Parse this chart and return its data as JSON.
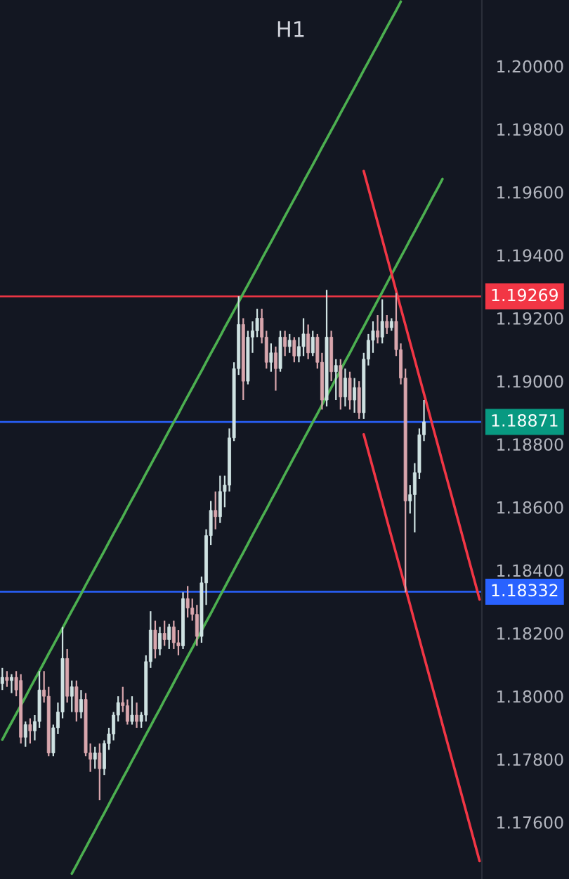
{
  "chart_data": {
    "type": "candlestick",
    "title": "H1",
    "categories": [
      null,
      null,
      null,
      null,
      null,
      null,
      null,
      null,
      null,
      null,
      null,
      null,
      null,
      null,
      null,
      null,
      null,
      null,
      null,
      null,
      null,
      null,
      null,
      null,
      null,
      null,
      null,
      null,
      null,
      null,
      null,
      null,
      null,
      null,
      null,
      null,
      null,
      null,
      null,
      null,
      null,
      null,
      null,
      null,
      null,
      null,
      null,
      null,
      null,
      null,
      null,
      null,
      null,
      null,
      null,
      null,
      null,
      null,
      null,
      null,
      null,
      null,
      null,
      null,
      null,
      null,
      null,
      null,
      null,
      null,
      null,
      null,
      null,
      null,
      null,
      null,
      null,
      null,
      null,
      null,
      null,
      null,
      null,
      null,
      null,
      null,
      null,
      null,
      null,
      null,
      null,
      null,
      null,
      null,
      null,
      null,
      null,
      null,
      null,
      null,
      null,
      null,
      null,
      null
    ],
    "ohlc": [
      [
        1.1804,
        1.1809,
        1.1802,
        1.1806
      ],
      [
        1.1806,
        1.1808,
        1.1803,
        1.1805
      ],
      [
        1.1805,
        1.1807,
        1.1801,
        1.1806
      ],
      [
        1.1806,
        1.1808,
        1.18,
        1.1802
      ],
      [
        1.1805,
        1.1807,
        1.1785,
        1.1787
      ],
      [
        1.1787,
        1.1792,
        1.1784,
        1.1791
      ],
      [
        1.1791,
        1.1793,
        1.1785,
        1.1789
      ],
      [
        1.1789,
        1.1794,
        1.1786,
        1.1792
      ],
      [
        1.1792,
        1.1808,
        1.179,
        1.1802
      ],
      [
        1.1802,
        1.1808,
        1.1798,
        1.18
      ],
      [
        1.18,
        1.1803,
        1.1781,
        1.1782
      ],
      [
        1.1782,
        1.1791,
        1.1781,
        1.179
      ],
      [
        1.179,
        1.1798,
        1.1788,
        1.1795
      ],
      [
        1.1795,
        1.1822,
        1.1793,
        1.1812
      ],
      [
        1.1812,
        1.1815,
        1.1798,
        1.18
      ],
      [
        1.18,
        1.1805,
        1.1795,
        1.1803
      ],
      [
        1.1803,
        1.1805,
        1.1792,
        1.1795
      ],
      [
        1.1795,
        1.1802,
        1.1793,
        1.1799
      ],
      [
        1.1799,
        1.1801,
        1.1781,
        1.1782
      ],
      [
        1.1782,
        1.1785,
        1.1776,
        1.178
      ],
      [
        1.178,
        1.1784,
        1.1777,
        1.1782
      ],
      [
        1.1782,
        1.1785,
        1.1767,
        1.1777
      ],
      [
        1.1777,
        1.1786,
        1.1775,
        1.1785
      ],
      [
        1.1785,
        1.179,
        1.1783,
        1.1788
      ],
      [
        1.1788,
        1.1795,
        1.1786,
        1.1794
      ],
      [
        1.1794,
        1.18,
        1.1792,
        1.1798
      ],
      [
        1.1798,
        1.1803,
        1.1795,
        1.1797
      ],
      [
        1.1797,
        1.1799,
        1.1791,
        1.1792
      ],
      [
        1.1792,
        1.18,
        1.1791,
        1.1794
      ],
      [
        1.1794,
        1.1798,
        1.179,
        1.1792
      ],
      [
        1.1792,
        1.1795,
        1.179,
        1.1794
      ],
      [
        1.1794,
        1.1813,
        1.1792,
        1.1811
      ],
      [
        1.1811,
        1.1827,
        1.1809,
        1.1821
      ],
      [
        1.1821,
        1.1824,
        1.1812,
        1.1815
      ],
      [
        1.1815,
        1.1822,
        1.1813,
        1.182
      ],
      [
        1.182,
        1.1824,
        1.1816,
        1.1818
      ],
      [
        1.1818,
        1.1823,
        1.1815,
        1.1822
      ],
      [
        1.1822,
        1.1824,
        1.1815,
        1.1817
      ],
      [
        1.1817,
        1.1821,
        1.1813,
        1.1816
      ],
      [
        1.1816,
        1.1833,
        1.1815,
        1.1831
      ],
      [
        1.1831,
        1.1835,
        1.1825,
        1.1828
      ],
      [
        1.1828,
        1.1831,
        1.1824,
        1.1826
      ],
      [
        1.1826,
        1.1829,
        1.1816,
        1.1819
      ],
      [
        1.1819,
        1.1838,
        1.1817,
        1.1836
      ],
      [
        1.1836,
        1.1853,
        1.1829,
        1.1851
      ],
      [
        1.1851,
        1.1862,
        1.1848,
        1.1859
      ],
      [
        1.1859,
        1.1865,
        1.1853,
        1.1857
      ],
      [
        1.1857,
        1.187,
        1.1855,
        1.1865
      ],
      [
        1.1865,
        1.187,
        1.186,
        1.1867
      ],
      [
        1.1867,
        1.1885,
        1.1865,
        1.1882
      ],
      [
        1.1882,
        1.1906,
        1.1881,
        1.1904
      ],
      [
        1.1904,
        1.1927,
        1.1902,
        1.1918
      ],
      [
        1.1918,
        1.192,
        1.1894,
        1.19
      ],
      [
        1.19,
        1.1916,
        1.1899,
        1.1914
      ],
      [
        1.1914,
        1.1919,
        1.1909,
        1.1916
      ],
      [
        1.1916,
        1.1923,
        1.1914,
        1.192
      ],
      [
        1.192,
        1.1923,
        1.1912,
        1.1914
      ],
      [
        1.1914,
        1.1916,
        1.1904,
        1.1906
      ],
      [
        1.1906,
        1.1912,
        1.1903,
        1.1909
      ],
      [
        1.1909,
        1.1911,
        1.1897,
        1.1904
      ],
      [
        1.1904,
        1.1916,
        1.1903,
        1.1914
      ],
      [
        1.1914,
        1.1916,
        1.1908,
        1.1911
      ],
      [
        1.1911,
        1.1915,
        1.1909,
        1.1913
      ],
      [
        1.1913,
        1.1914,
        1.1906,
        1.1908
      ],
      [
        1.1908,
        1.1914,
        1.1906,
        1.1911
      ],
      [
        1.1911,
        1.192,
        1.1908,
        1.1915
      ],
      [
        1.1915,
        1.1918,
        1.1907,
        1.1909
      ],
      [
        1.1909,
        1.1916,
        1.1908,
        1.1914
      ],
      [
        1.1914,
        1.1915,
        1.1904,
        1.1906
      ],
      [
        1.1906,
        1.1909,
        1.1891,
        1.1894
      ],
      [
        1.1894,
        1.1929,
        1.1892,
        1.1914
      ],
      [
        1.1914,
        1.1916,
        1.19,
        1.1903
      ],
      [
        1.1903,
        1.1907,
        1.1894,
        1.1905
      ],
      [
        1.1905,
        1.1907,
        1.1891,
        1.1895
      ],
      [
        1.1895,
        1.1904,
        1.1892,
        1.1901
      ],
      [
        1.1901,
        1.1903,
        1.1891,
        1.1894
      ],
      [
        1.1894,
        1.1901,
        1.189,
        1.1898
      ],
      [
        1.1898,
        1.19,
        1.1888,
        1.189
      ],
      [
        1.189,
        1.1909,
        1.1888,
        1.1907
      ],
      [
        1.1907,
        1.1915,
        1.1905,
        1.1913
      ],
      [
        1.1913,
        1.1919,
        1.1909,
        1.1916
      ],
      [
        1.1916,
        1.1921,
        1.1912,
        1.1914
      ],
      [
        1.1914,
        1.1926,
        1.1912,
        1.1919
      ],
      [
        1.1919,
        1.1921,
        1.1915,
        1.1917
      ],
      [
        1.1917,
        1.192,
        1.1916,
        1.1919
      ],
      [
        1.1919,
        1.1928,
        1.1908,
        1.191
      ],
      [
        1.191,
        1.1912,
        1.1899,
        1.1901
      ],
      [
        1.1901,
        1.1904,
        1.1833,
        1.1862
      ],
      [
        1.1862,
        1.1867,
        1.1858,
        1.1864
      ],
      [
        1.1864,
        1.1874,
        1.1852,
        1.1871
      ],
      [
        1.1871,
        1.1885,
        1.1869,
        1.1883
      ],
      [
        1.1883,
        1.1894,
        1.1881,
        1.18871
      ],
      null,
      null,
      null,
      null,
      null,
      null,
      null,
      null,
      null,
      null,
      null,
      null
    ],
    "colors": [
      "#cfe2e2",
      "#d9a6ad",
      "#cfe2e2",
      "#d9a6ad",
      "#d9a6ad",
      "#cfe2e2",
      "#d9a6ad",
      "#cfe2e2",
      "#cfe2e2",
      "#d9a6ad",
      "#d9a6ad",
      "#cfe2e2",
      "#cfe2e2",
      "#cfe2e2",
      "#d9a6ad",
      "#cfe2e2",
      "#d9a6ad",
      "#cfe2e2",
      "#d9a6ad",
      "#d9a6ad",
      "#cfe2e2",
      "#d9a6ad",
      "#cfe2e2",
      "#cfe2e2",
      "#cfe2e2",
      "#cfe2e2",
      "#d9a6ad",
      "#d9a6ad",
      "#cfe2e2",
      "#d9a6ad",
      "#cfe2e2",
      "#cfe2e2",
      "#cfe2e2",
      "#d9a6ad",
      "#cfe2e2",
      "#d9a6ad",
      "#cfe2e2",
      "#d9a6ad",
      "#d9a6ad",
      "#cfe2e2",
      "#d9a6ad",
      "#d9a6ad",
      "#d9a6ad",
      "#cfe2e2",
      "#cfe2e2",
      "#cfe2e2",
      "#d9a6ad",
      "#cfe2e2",
      "#cfe2e2",
      "#cfe2e2",
      "#cfe2e2",
      "#cfe2e2",
      "#d9a6ad",
      "#cfe2e2",
      "#cfe2e2",
      "#cfe2e2",
      "#d9a6ad",
      "#d9a6ad",
      "#cfe2e2",
      "#d9a6ad",
      "#cfe2e2",
      "#d9a6ad",
      "#cfe2e2",
      "#d9a6ad",
      "#cfe2e2",
      "#cfe2e2",
      "#d9a6ad",
      "#cfe2e2",
      "#d9a6ad",
      "#d9a6ad",
      "#cfe2e2",
      "#d9a6ad",
      "#cfe2e2",
      "#d9a6ad",
      "#cfe2e2",
      "#d9a6ad",
      "#cfe2e2",
      "#d9a6ad",
      "#cfe2e2",
      "#cfe2e2",
      "#cfe2e2",
      "#d9a6ad",
      "#cfe2e2",
      "#d9a6ad",
      "#cfe2e2",
      "#d9a6ad",
      "#d9a6ad",
      "#d9a6ad",
      "#cfe2e2",
      "#cfe2e2",
      "#cfe2e2",
      "#cfe2e2",
      null,
      null,
      null,
      null,
      null,
      null,
      null,
      null,
      null,
      null,
      null,
      null
    ],
    "series": [
      {
        "type": "line",
        "color": "#4caf50",
        "values": [
          1.17862,
          1.1789,
          1.17917,
          1.17944,
          1.17971,
          1.17998,
          1.18026,
          1.18053,
          1.1808,
          1.18107,
          1.18135,
          1.18162,
          1.18189,
          1.18216,
          1.18244,
          1.18271,
          1.18298,
          1.18325,
          1.18353,
          1.1838,
          1.18407,
          1.18434,
          1.18461,
          1.18489,
          1.18516,
          1.18543,
          1.1857,
          1.18598,
          1.18625,
          1.18652,
          1.18679,
          1.18707,
          1.18734,
          1.18761,
          1.18788,
          1.18816,
          1.18843,
          1.1887,
          1.18897,
          1.18925,
          1.18952,
          1.18979,
          1.19006,
          1.19033,
          1.19061,
          1.19088,
          1.19115,
          1.19142,
          1.1917,
          1.19197,
          1.19224,
          1.19251,
          1.19279,
          1.19306,
          1.19333,
          1.1936,
          1.19388,
          1.19415,
          1.19442,
          1.19469,
          1.19496,
          1.19524,
          1.19551,
          1.19578,
          1.19605,
          1.19633,
          1.1966,
          1.19687,
          1.19714,
          1.19742,
          1.19769,
          1.19796,
          1.19823,
          1.19851,
          1.19878,
          1.19905,
          1.19932,
          1.19959,
          1.19987,
          1.20014,
          1.20041,
          1.20068,
          1.20096,
          1.20123,
          1.2015,
          1.20177,
          1.20205,
          null,
          null,
          null,
          null,
          null,
          null,
          null,
          null,
          null,
          null,
          null,
          null,
          null,
          null,
          null,
          null,
          null
        ]
      },
      {
        "type": "line",
        "color": "#4caf50",
        "values": [
          null,
          null,
          null,
          null,
          null,
          null,
          null,
          null,
          null,
          null,
          null,
          null,
          null,
          null,
          null,
          1.17437,
          1.17464,
          1.17492,
          1.17519,
          1.17547,
          1.17574,
          1.17602,
          1.17629,
          1.17657,
          1.17685,
          1.17712,
          1.1774,
          1.17767,
          1.17795,
          1.17822,
          1.1785,
          1.17878,
          1.17905,
          1.17933,
          1.1796,
          1.17988,
          1.18015,
          1.18043,
          1.18071,
          1.18098,
          1.18126,
          1.18153,
          1.18181,
          1.18208,
          1.18236,
          1.18263,
          1.18291,
          1.18319,
          1.18346,
          1.18374,
          1.18401,
          1.18429,
          1.18456,
          1.18484,
          1.18512,
          1.18539,
          1.18567,
          1.18594,
          1.18622,
          1.18649,
          1.18677,
          1.18705,
          1.18732,
          1.1876,
          1.18787,
          1.18815,
          1.18842,
          1.1887,
          1.18897,
          1.18925,
          1.18953,
          1.1898,
          1.19008,
          1.19035,
          1.19063,
          1.1909,
          1.19118,
          1.19146,
          1.19173,
          1.19201,
          1.19228,
          1.19256,
          1.19283,
          1.19311,
          1.19339,
          1.19366,
          1.19394,
          1.19421,
          1.19449,
          1.19476,
          1.19504,
          1.19531,
          1.19559,
          1.19587,
          1.19614,
          1.19642,
          null,
          null,
          null,
          null,
          null,
          null,
          null,
          null
        ]
      },
      {
        "type": "line",
        "color": "#f23645",
        "values": [
          null,
          null,
          null,
          null,
          null,
          null,
          null,
          null,
          null,
          null,
          null,
          null,
          null,
          null,
          null,
          null,
          null,
          null,
          null,
          null,
          null,
          null,
          null,
          null,
          null,
          null,
          null,
          null,
          null,
          null,
          null,
          null,
          null,
          null,
          null,
          null,
          null,
          null,
          null,
          null,
          null,
          null,
          null,
          null,
          null,
          null,
          null,
          null,
          null,
          null,
          null,
          null,
          null,
          null,
          null,
          null,
          null,
          null,
          null,
          null,
          null,
          null,
          null,
          null,
          null,
          null,
          null,
          null,
          null,
          null,
          null,
          null,
          null,
          null,
          null,
          null,
          null,
          null,
          1.19667,
          1.19613,
          1.19559,
          1.19504,
          1.1945,
          1.19395,
          1.19341,
          1.19286,
          1.19232,
          1.19178,
          1.19123,
          1.19069,
          1.19014,
          1.1896,
          1.18906,
          1.18851,
          1.18797,
          1.18742,
          1.18688,
          1.18634,
          1.18579,
          1.18525,
          1.1847,
          1.18416,
          1.18362,
          1.18307
        ]
      },
      {
        "type": "line",
        "color": "#f23645",
        "values": [
          null,
          null,
          null,
          null,
          null,
          null,
          null,
          null,
          null,
          null,
          null,
          null,
          null,
          null,
          null,
          null,
          null,
          null,
          null,
          null,
          null,
          null,
          null,
          null,
          null,
          null,
          null,
          null,
          null,
          null,
          null,
          null,
          null,
          null,
          null,
          null,
          null,
          null,
          null,
          null,
          null,
          null,
          null,
          null,
          null,
          null,
          null,
          null,
          null,
          null,
          null,
          null,
          null,
          null,
          null,
          null,
          null,
          null,
          null,
          null,
          null,
          null,
          null,
          null,
          null,
          null,
          null,
          null,
          null,
          null,
          null,
          null,
          null,
          null,
          null,
          null,
          null,
          null,
          1.18831,
          1.18777,
          1.18723,
          1.18669,
          1.18615,
          1.1856,
          1.18506,
          1.18452,
          1.18398,
          1.18344,
          1.1829,
          1.18235,
          1.18181,
          1.18127,
          1.18073,
          1.18019,
          1.17965,
          1.1791,
          1.17856,
          1.17802,
          1.17748,
          1.17694,
          1.1764,
          1.17585,
          1.17531,
          1.17477
        ]
      }
    ],
    "ylim": [
      1.1742,
      1.2021
    ],
    "yticks": [
      {
        "value": 1.176,
        "label": "1.17600"
      },
      {
        "value": 1.178,
        "label": "1.17800"
      },
      {
        "value": 1.18,
        "label": "1.18000"
      },
      {
        "value": 1.182,
        "label": "1.18200"
      },
      {
        "value": 1.184,
        "label": "1.18400"
      },
      {
        "value": 1.186,
        "label": "1.18600"
      },
      {
        "value": 1.188,
        "label": "1.18800"
      },
      {
        "value": 1.19,
        "label": "1.19000"
      },
      {
        "value": 1.192,
        "label": "1.19200"
      },
      {
        "value": 1.194,
        "label": "1.19400"
      },
      {
        "value": 1.196,
        "label": "1.19600"
      },
      {
        "value": 1.198,
        "label": "1.19800"
      },
      {
        "value": 1.2,
        "label": "1.20000"
      }
    ],
    "ref_lines": [
      {
        "axis": "y",
        "value": 1.19269,
        "label": "1.19269",
        "color": "#f23645"
      },
      {
        "axis": "y",
        "value": 1.18871,
        "color": "#2962ff"
      },
      {
        "axis": "y",
        "value": 1.18332,
        "label": "1.18332",
        "color": "#2962ff"
      }
    ],
    "annotations": [
      "1.18871"
    ],
    "tick_labels": "y"
  }
}
